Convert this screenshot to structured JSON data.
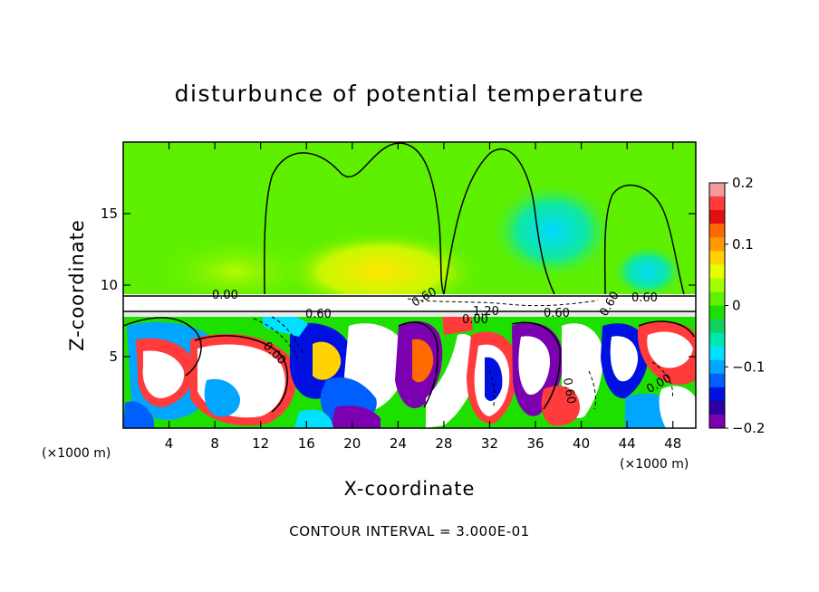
{
  "chart_data": {
    "type": "heatmap",
    "title": "disturbunce of potential temperature",
    "xlabel": "X-coordinate",
    "ylabel": "Z-coordinate",
    "x_unit": "(×1000 m)",
    "z_unit": "(×1000 m)",
    "xlim": [
      0,
      50
    ],
    "ylim": [
      0,
      20
    ],
    "x_ticks": [
      4,
      8,
      12,
      16,
      20,
      24,
      28,
      32,
      36,
      40,
      44,
      48
    ],
    "y_ticks": [
      5,
      10,
      15
    ],
    "colorbar": {
      "range": [
        -0.2,
        0.2
      ],
      "tick_values": [
        0.2,
        0.1,
        0,
        -0.1,
        -0.2
      ],
      "tick_labels": [
        "0.2",
        "0.1",
        "0",
        "−0.1",
        "−0.2"
      ],
      "colors": [
        "#f49a9a",
        "#ff3b3b",
        "#e01010",
        "#ff6a00",
        "#ff9a00",
        "#ffd200",
        "#e6ff00",
        "#a6ff00",
        "#60f000",
        "#1ee000",
        "#10d060",
        "#00e6b0",
        "#00e0ff",
        "#00a6ff",
        "#0060ff",
        "#0010e0",
        "#2a00a0",
        "#7a00b0"
      ]
    },
    "contour_labels": [
      "0.00",
      "0.60",
      "0.00",
      "0.60",
      "1.20",
      "0.60",
      "0.60",
      "0.00",
      "0.60",
      "0.00",
      "0.60"
    ],
    "contour_interval_text": "CONTOUR INTERVAL = 3.000E-01",
    "grid": false
  },
  "colors": {
    "upper_green": "#5ef000",
    "upper_light": "#9af500",
    "warm": "#ffd800",
    "cyan": "#00e0d0"
  }
}
